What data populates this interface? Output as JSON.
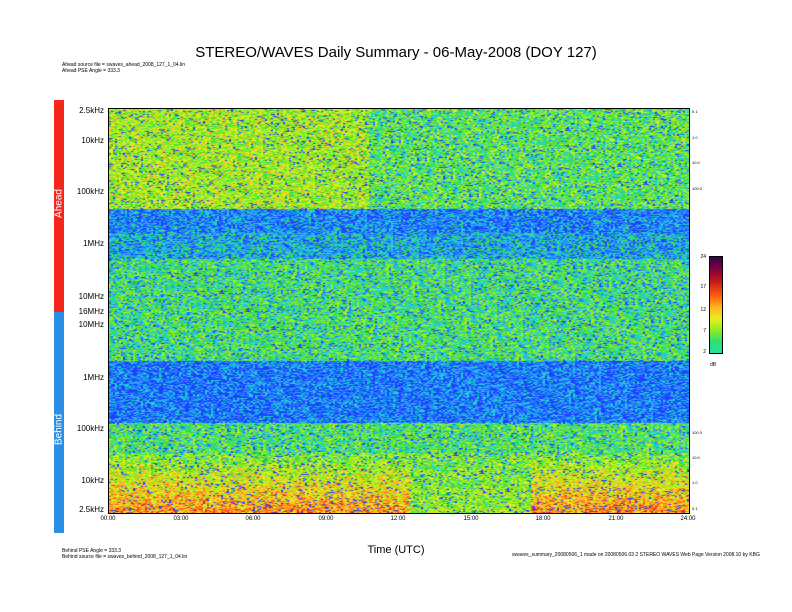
{
  "title": "STEREO/WAVES Daily Summary - 06-May-2008 (DOY 127)",
  "ahead_source": "Ahead source file = swaves_ahead_2008_127_1_04.lin",
  "ahead_angle": "Ahead PSE Angle = 333.3",
  "behind_angle": "Behind PSE Angle = 333.3",
  "behind_source": "Behind source file = swaves_behind_2008_127_1_04.lin",
  "footer_right": "swaves_summary_20080506_1 made on 20080506.03 2 STEREO WAVES Web Page Version 2008.10 by KBG",
  "bands": {
    "ahead": "Ahead",
    "behind": "Behind"
  },
  "chart_data": {
    "type": "heatmap",
    "title": "STEREO/WAVES Daily Summary - 06-May-2008 (DOY 127)",
    "xlabel": "Time (UTC)",
    "x_ticks": [
      "00:00",
      "03:00",
      "06:00",
      "09:00",
      "12:00",
      "15:00",
      "18:00",
      "21:00",
      "24:00"
    ],
    "xlim": [
      "00:00",
      "24:00"
    ],
    "panels": [
      {
        "name": "Ahead",
        "y_ticks_top_to_bottom": [
          "2.5kHz",
          "10kHz",
          "100kHz",
          "1MHz",
          "10MHz",
          "16MHz"
        ],
        "right_ticks": [
          "0.1",
          "1.0",
          "10.0",
          "100.0"
        ]
      },
      {
        "name": "Behind",
        "y_ticks_top_to_bottom": [
          "10MHz",
          "1MHz",
          "100kHz",
          "10kHz",
          "2.5kHz"
        ],
        "right_ticks": [
          "100.0",
          "10.0",
          "1.0",
          "0.1"
        ]
      }
    ],
    "colorbar": {
      "ticks": [
        "24",
        "17",
        "12",
        "7",
        "2"
      ],
      "unit": "dB",
      "range": [
        2,
        24
      ]
    },
    "palette": [
      "#2040ff",
      "#2090ff",
      "#20d0d0",
      "#40e040",
      "#a0ee20",
      "#e0ee20",
      "#ffb020",
      "#ff6020",
      "#e02020",
      "#800020"
    ]
  }
}
